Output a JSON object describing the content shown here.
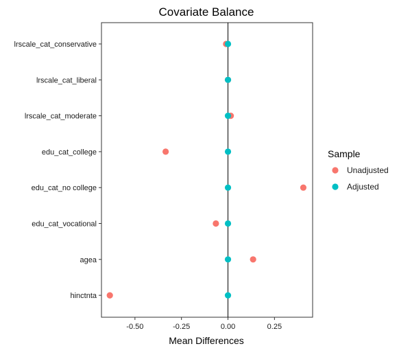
{
  "chart_data": {
    "type": "scatter",
    "title": "Covariate Balance",
    "xlabel": "Mean Differences",
    "ylabel": "",
    "xlim": [
      -0.68,
      0.455
    ],
    "x_ticks": [
      -0.5,
      -0.25,
      0,
      0.25
    ],
    "x_tick_labels": [
      "-0.50",
      "-0.25",
      "0.00",
      "0.25"
    ],
    "reference_line_x": 0,
    "grid": false,
    "categories": [
      "lrscale_cat_conservative",
      "lrscale_cat_liberal",
      "lrscale_cat_moderate",
      "edu_cat_college",
      "edu_cat_no college",
      "edu_cat_vocational",
      "agea",
      "hinctnta"
    ],
    "series": [
      {
        "name": "Unadjusted",
        "color": "#F8766D",
        "values": [
          -0.01,
          0.0,
          0.015,
          -0.335,
          0.405,
          -0.065,
          0.135,
          -0.635
        ]
      },
      {
        "name": "Adjusted",
        "color": "#00BFC4",
        "values": [
          0.0,
          0.0,
          0.0,
          0.0,
          0.0,
          0.0,
          0.0,
          0.0
        ]
      }
    ],
    "legend": {
      "title": "Sample",
      "placement": "right",
      "entries": [
        "Unadjusted",
        "Adjusted"
      ]
    }
  }
}
